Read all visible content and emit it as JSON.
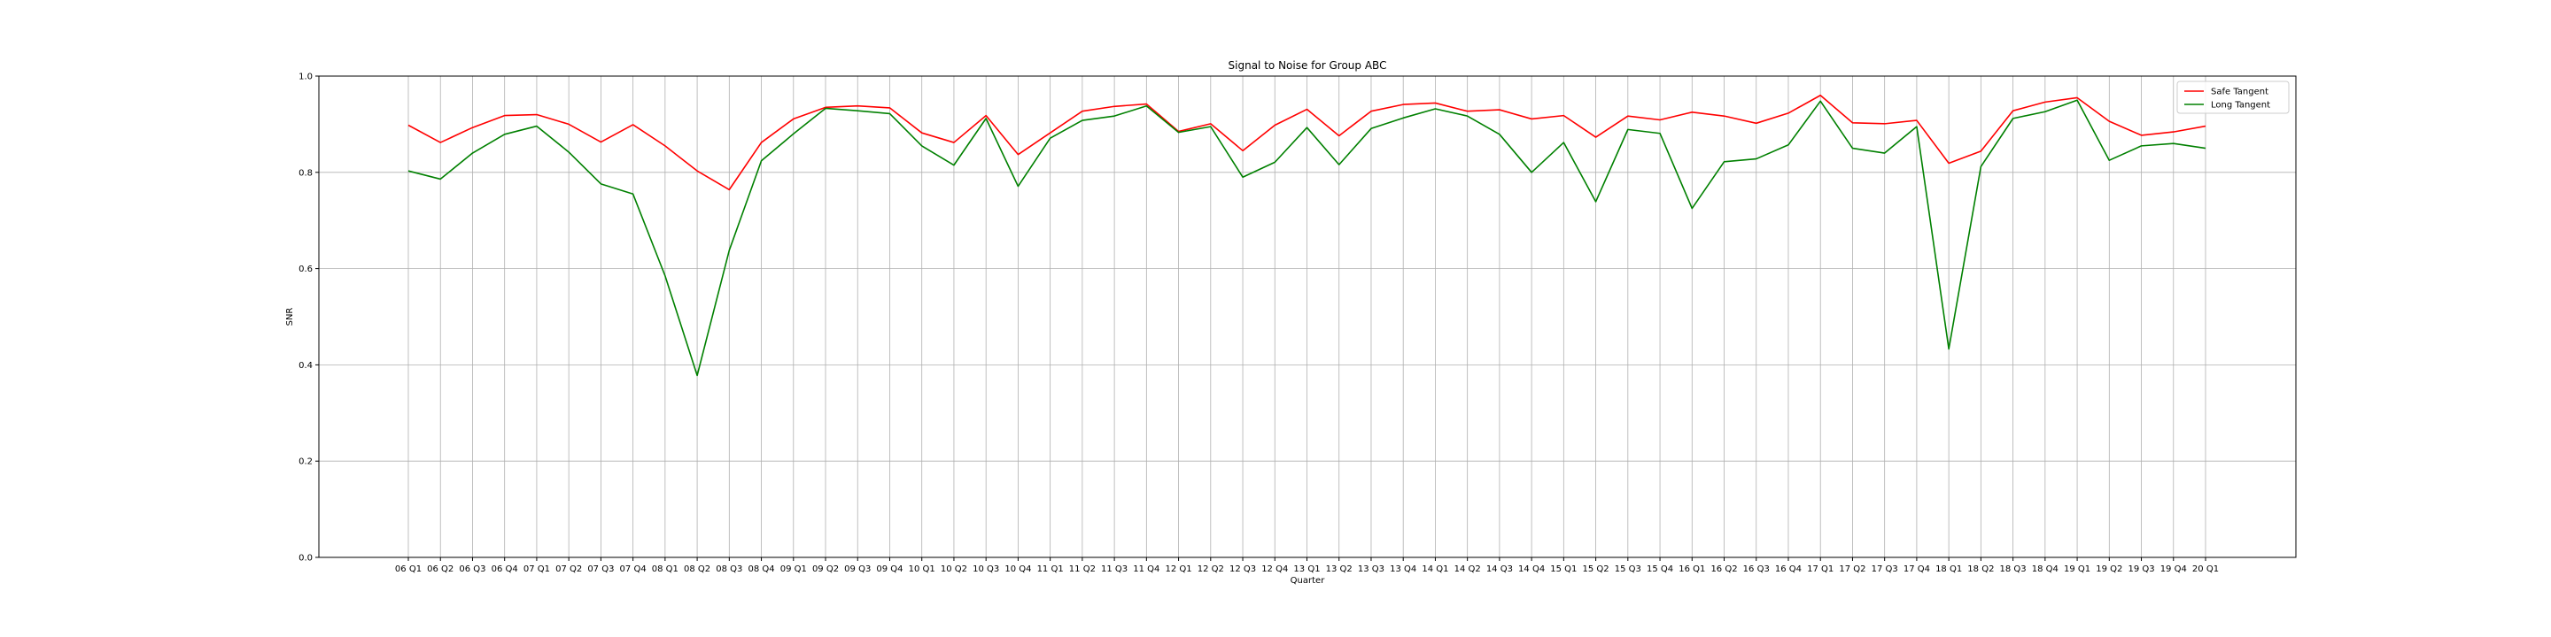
{
  "chart_data": {
    "type": "line",
    "title": "Signal to Noise for Group ABC",
    "xlabel": "Quarter",
    "ylabel": "SNR",
    "ylim": [
      0,
      1.0
    ],
    "yticks": [
      "0.0",
      "0.2",
      "0.4",
      "0.6",
      "0.8",
      "1.0"
    ],
    "grid": true,
    "legend_position": "top-right",
    "categories": [
      "06 Q1",
      "06 Q2",
      "06 Q3",
      "06 Q4",
      "07 Q1",
      "07 Q2",
      "07 Q3",
      "07 Q4",
      "08 Q1",
      "08 Q2",
      "08 Q3",
      "08 Q4",
      "09 Q1",
      "09 Q2",
      "09 Q3",
      "09 Q4",
      "10 Q1",
      "10 Q2",
      "10 Q3",
      "10 Q4",
      "11 Q1",
      "11 Q2",
      "11 Q3",
      "11 Q4",
      "12 Q1",
      "12 Q2",
      "12 Q3",
      "12 Q4",
      "13 Q1",
      "13 Q2",
      "13 Q3",
      "13 Q4",
      "14 Q1",
      "14 Q2",
      "14 Q3",
      "14 Q4",
      "15 Q1",
      "15 Q2",
      "15 Q3",
      "15 Q4",
      "16 Q1",
      "16 Q2",
      "16 Q3",
      "16 Q4",
      "17 Q1",
      "17 Q2",
      "17 Q3",
      "17 Q4",
      "18 Q1",
      "18 Q2",
      "18 Q3",
      "18 Q4",
      "19 Q1",
      "19 Q2",
      "19 Q3",
      "19 Q4",
      "20 Q1"
    ],
    "series": [
      {
        "name": "Safe Tangent",
        "color": "#ff0000",
        "values": [
          0.898,
          0.862,
          0.893,
          0.918,
          0.92,
          0.9,
          0.863,
          0.899,
          0.855,
          0.803,
          0.764,
          0.862,
          0.911,
          0.935,
          0.938,
          0.934,
          0.882,
          0.862,
          0.918,
          0.837,
          0.882,
          0.927,
          0.937,
          0.942,
          0.885,
          0.901,
          0.845,
          0.898,
          0.931,
          0.876,
          0.927,
          0.941,
          0.944,
          0.927,
          0.93,
          0.911,
          0.918,
          0.873,
          0.917,
          0.909,
          0.925,
          0.917,
          0.902,
          0.923,
          0.96,
          0.903,
          0.901,
          0.908,
          0.819,
          0.844,
          0.928,
          0.946,
          0.955,
          0.906,
          0.877,
          0.884,
          0.896
        ]
      },
      {
        "name": "Long Tangent",
        "color": "#008000",
        "values": [
          0.803,
          0.786,
          0.84,
          0.879,
          0.896,
          0.842,
          0.776,
          0.755,
          0.585,
          0.378,
          0.638,
          0.824,
          0.88,
          0.933,
          0.928,
          0.922,
          0.855,
          0.815,
          0.912,
          0.771,
          0.871,
          0.908,
          0.917,
          0.938,
          0.883,
          0.895,
          0.79,
          0.821,
          0.893,
          0.816,
          0.891,
          0.913,
          0.932,
          0.917,
          0.879,
          0.8,
          0.862,
          0.739,
          0.889,
          0.881,
          0.725,
          0.822,
          0.828,
          0.857,
          0.948,
          0.85,
          0.84,
          0.895,
          0.433,
          0.812,
          0.912,
          0.926,
          0.95,
          0.825,
          0.855,
          0.86,
          0.85
        ]
      }
    ]
  }
}
